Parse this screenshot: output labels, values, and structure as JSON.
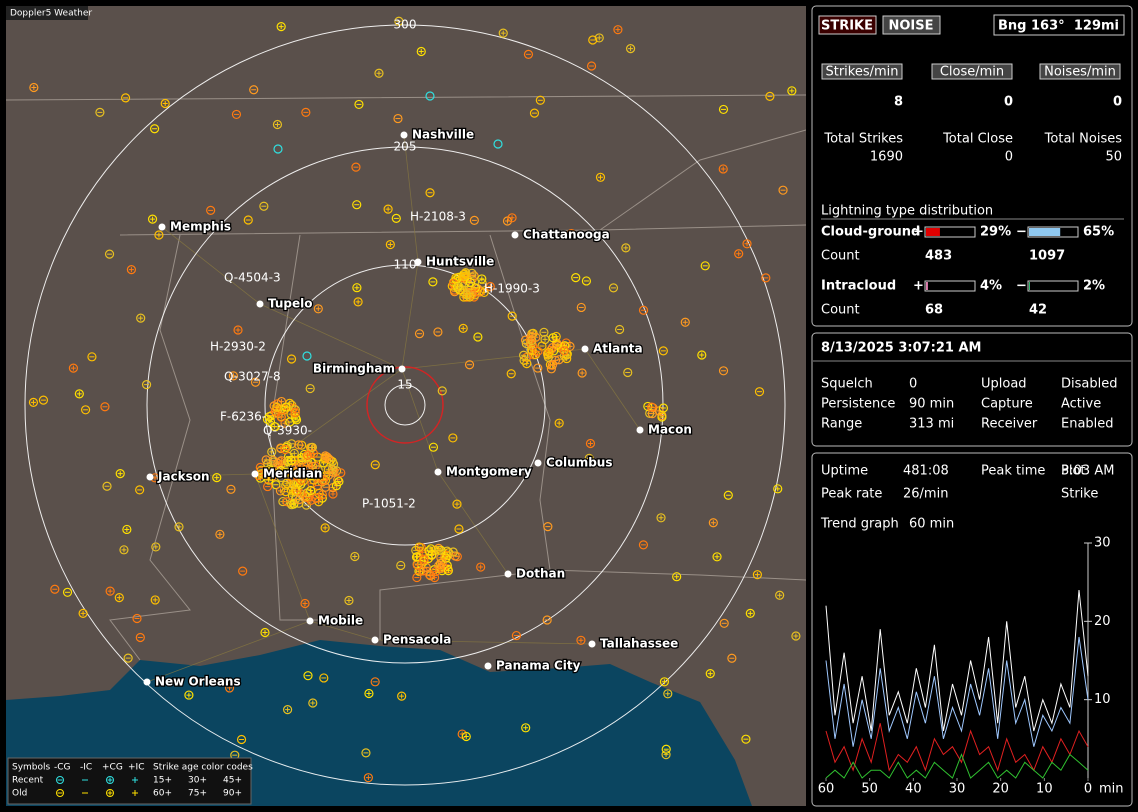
{
  "map": {
    "brand": "Doppler5 Weather",
    "range_labels": [
      "300",
      "205",
      "110",
      "15"
    ],
    "cities": [
      "Nashville",
      "Memphis",
      "Chattanooga",
      "Huntsville",
      "Tupelo",
      "Birmingham",
      "Atlanta",
      "Macon",
      "Jackson",
      "Meridian",
      "Montgomery",
      "Columbus",
      "Dothan",
      "Mobile",
      "Pensacola",
      "Tallahassee",
      "Panama City",
      "New Orleans"
    ],
    "storm_labels": [
      "H-2108-3",
      "H-1990-3",
      "Q-4504-3",
      "H-2930-2",
      "Q-3027-8",
      "F-6236-",
      "Q-3930-",
      "P-1051-2"
    ],
    "legend": {
      "symbols_title": "Symbols",
      "symbol_headers": [
        "-CG",
        "-IC",
        "+CG",
        "+IC"
      ],
      "age_title": "Strike age color codes",
      "rows": [
        "Recent",
        "Old"
      ],
      "recent_ages": [
        "15+",
        "30+",
        "45+"
      ],
      "old_ages": [
        "60+",
        "75+",
        "90+"
      ]
    }
  },
  "status": {
    "strike_button": "STRIKE",
    "noise_button": "NOISE",
    "bearing": "Bng 163°",
    "distance": "129mi",
    "rates": [
      {
        "label": "Strikes/min",
        "value": 8
      },
      {
        "label": "Close/min",
        "value": 0
      },
      {
        "label": "Noises/min",
        "value": 0
      }
    ],
    "totals": [
      {
        "label": "Total Strikes",
        "value": 1690
      },
      {
        "label": "Total Close",
        "value": 0
      },
      {
        "label": "Total Noises",
        "value": 50
      }
    ],
    "distribution": {
      "title": "Lightning type distribution",
      "rows": [
        {
          "label": "Cloud-ground",
          "count_label": "Count",
          "positive": {
            "sign": "+",
            "percent": 29,
            "percent_label": "29%",
            "count": 483
          },
          "negative": {
            "sign": "−",
            "percent": 65,
            "percent_label": "65%",
            "count": 1097
          }
        },
        {
          "label": "Intracloud",
          "count_label": "Count",
          "positive": {
            "sign": "+",
            "percent": 4,
            "percent_label": "4%",
            "count": 68
          },
          "negative": {
            "sign": "−",
            "percent": 2,
            "percent_label": "2%",
            "count": 42
          }
        }
      ]
    }
  },
  "settings": {
    "datetime": "8/13/2025 3:07:21 AM",
    "items": [
      {
        "label": "Squelch",
        "value": "0"
      },
      {
        "label": "Upload",
        "value": "Disabled"
      },
      {
        "label": "Persistence",
        "value": "90 min"
      },
      {
        "label": "Capture",
        "value": "Active"
      },
      {
        "label": "Range",
        "value": "313 mi"
      },
      {
        "label": "Receiver",
        "value": "Enabled"
      }
    ]
  },
  "uptime": {
    "items": [
      {
        "label": "Uptime",
        "value": "481:08"
      },
      {
        "label": "Peak time",
        "value": "3:03 AM"
      },
      {
        "label": "Plot",
        "value": "Strike"
      },
      {
        "label": "Peak rate",
        "value": "26/min"
      }
    ],
    "trend_label": "Trend graph",
    "trend_window": "60 min"
  },
  "chart_data": {
    "type": "line",
    "xlim": [
      60,
      0
    ],
    "ylim": [
      0,
      30
    ],
    "xticks": [
      60,
      50,
      40,
      30,
      20,
      10,
      0
    ],
    "yticks": [
      10,
      20,
      30
    ],
    "x_label": "min",
    "series": [
      {
        "color": "#ffffff",
        "values": [
          22,
          8,
          16,
          7,
          13,
          6,
          19,
          8,
          11,
          7,
          14,
          9,
          17,
          6,
          12,
          8,
          15,
          10,
          18,
          7,
          20,
          9,
          13,
          6,
          10,
          7,
          12,
          9,
          24,
          13
        ]
      },
      {
        "color": "#9fc8ff",
        "values": [
          15,
          5,
          12,
          4,
          10,
          5,
          14,
          6,
          9,
          5,
          11,
          7,
          13,
          5,
          9,
          6,
          12,
          8,
          14,
          5,
          15,
          7,
          10,
          4,
          8,
          6,
          9,
          7,
          18,
          10
        ]
      },
      {
        "color": "#e02020",
        "values": [
          6,
          2,
          4,
          1,
          5,
          2,
          7,
          1,
          3,
          2,
          4,
          1,
          5,
          3,
          4,
          2,
          6,
          3,
          4,
          1,
          5,
          2,
          3,
          1,
          4,
          2,
          5,
          3,
          6,
          4
        ]
      },
      {
        "color": "#30c030",
        "values": [
          0,
          1,
          0,
          2,
          0,
          1,
          1,
          0,
          2,
          0,
          1,
          0,
          2,
          1,
          0,
          3,
          0,
          1,
          2,
          0,
          1,
          0,
          2,
          1,
          0,
          2,
          1,
          3,
          2,
          1
        ]
      }
    ]
  }
}
